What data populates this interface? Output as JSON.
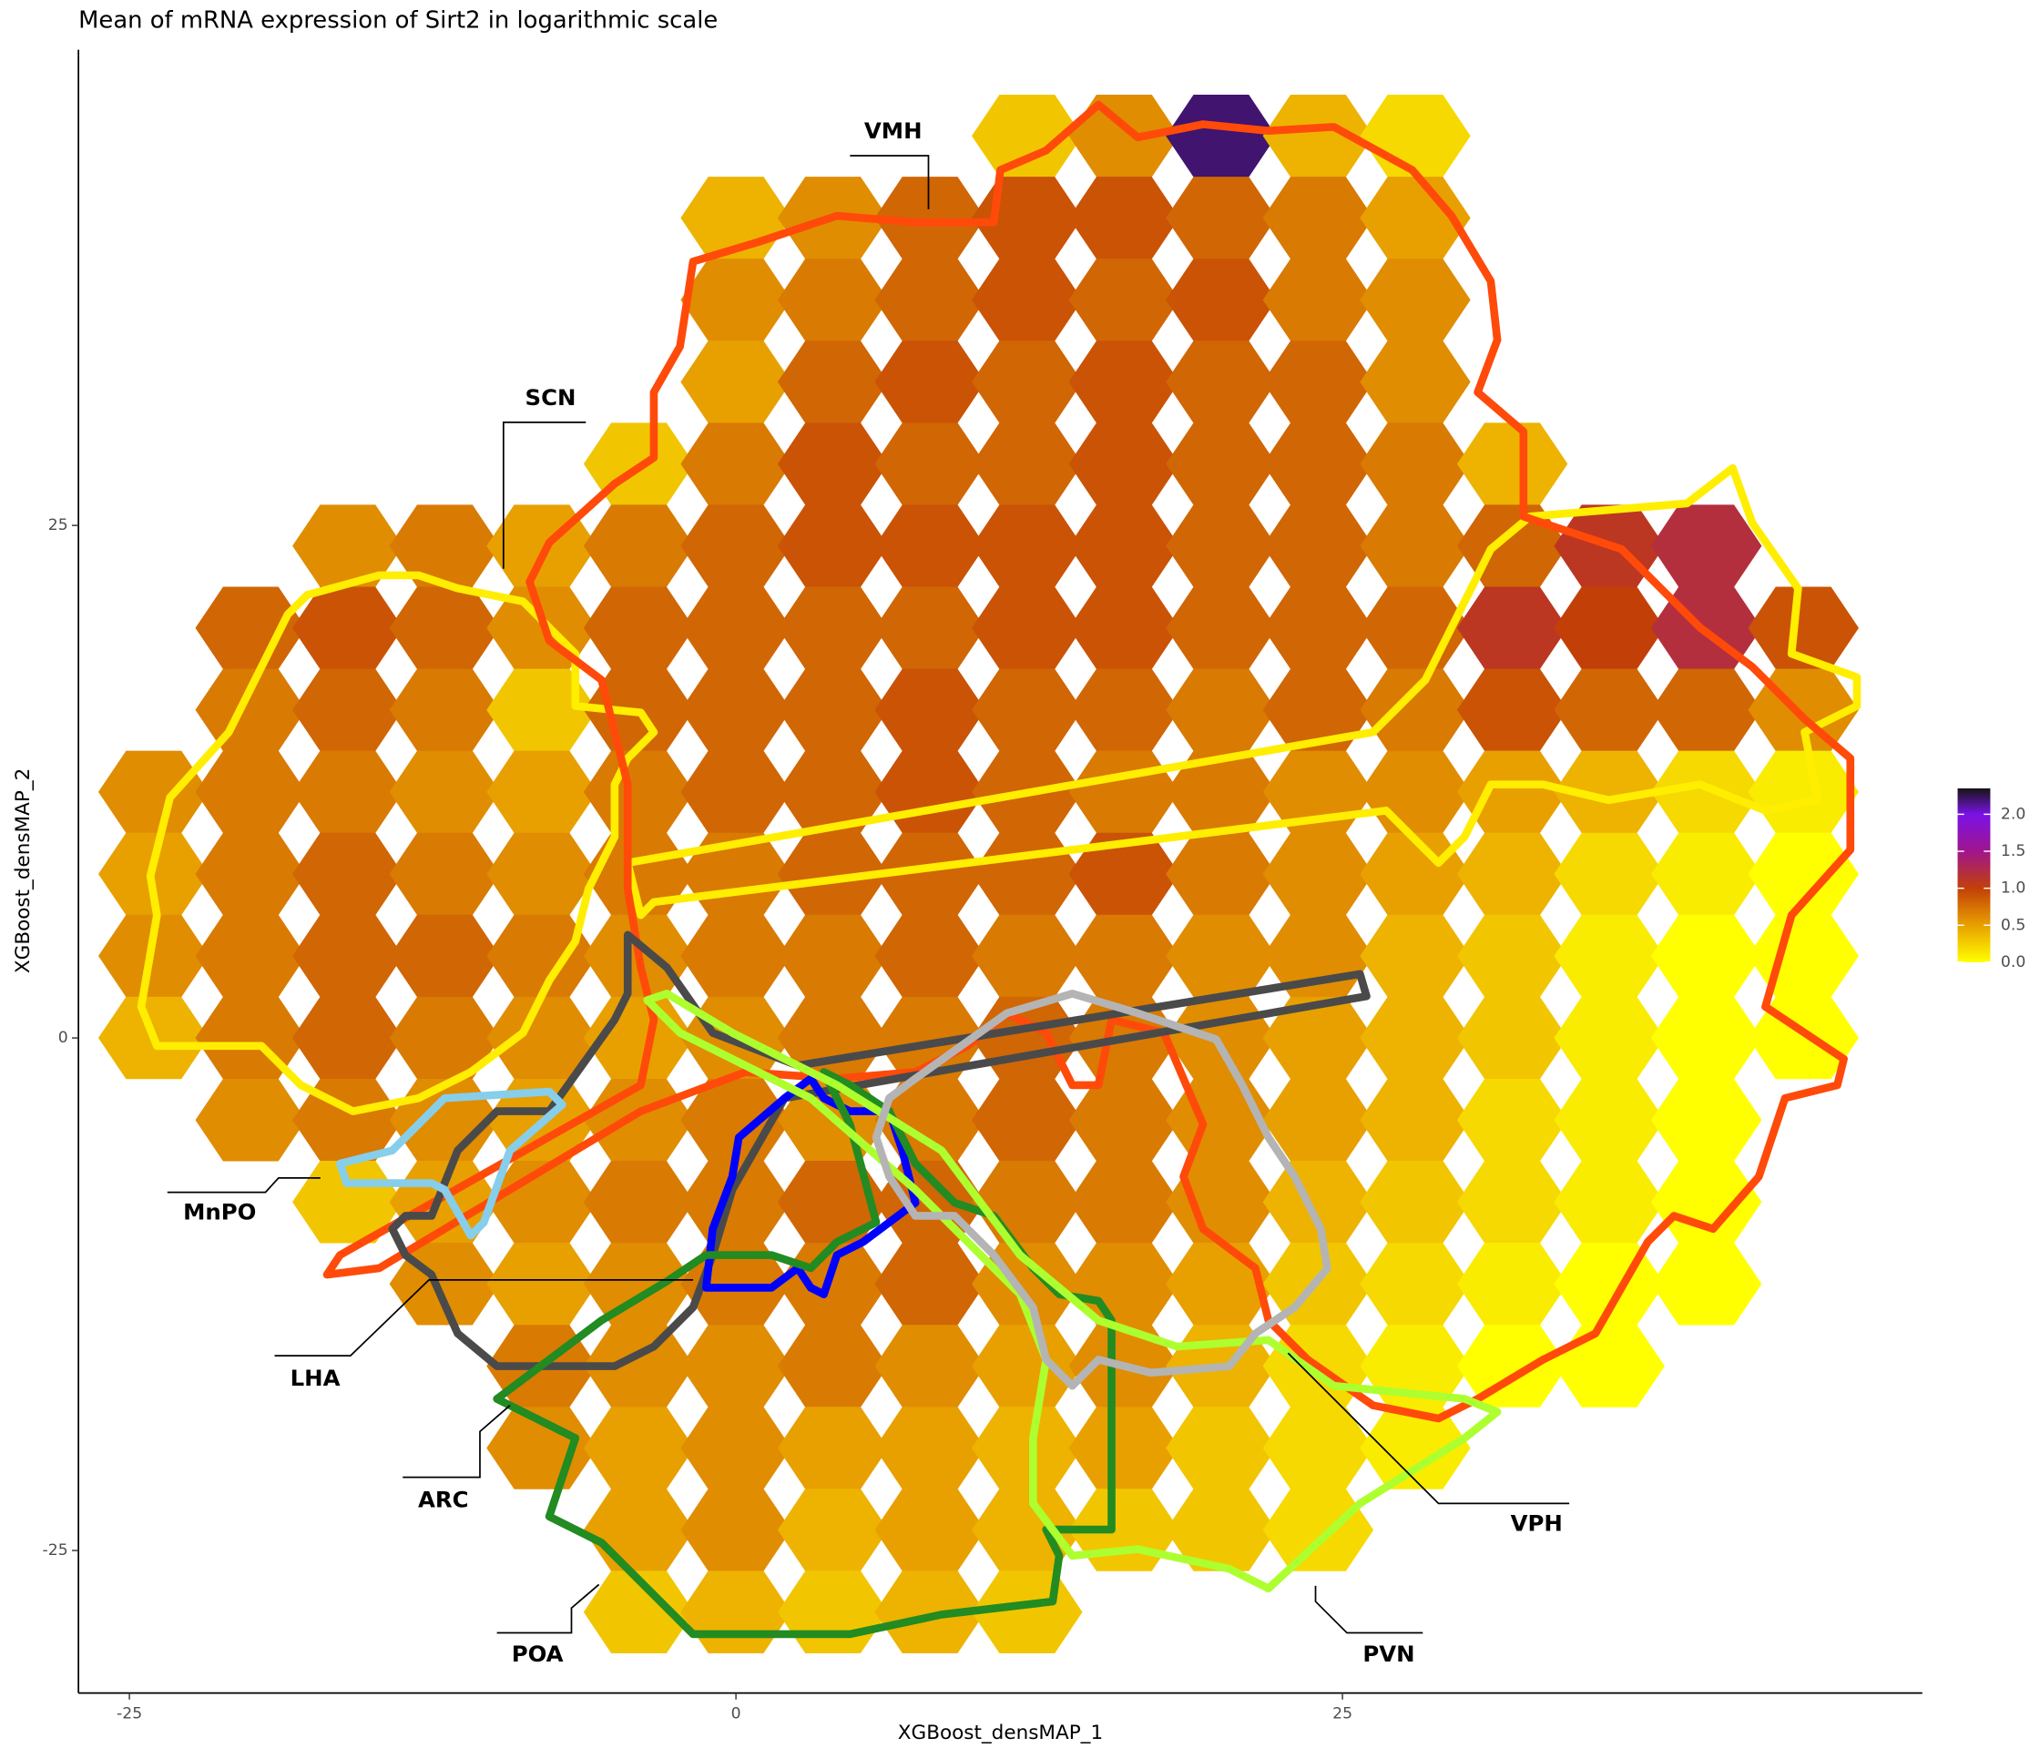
{
  "chart_data": {
    "type": "hexbin",
    "title": "Mean of mRNA expression of Sirt2 in logarithmic scale",
    "xlabel": "XGBoost_densMAP_1",
    "ylabel": "XGBoost_densMAP_2",
    "xlim": [
      -27.1,
      48.9
    ],
    "ylim": [
      -31.95,
      48.2
    ],
    "xticks": [
      -25,
      0,
      25
    ],
    "yticks": [
      -25,
      0,
      25
    ],
    "x": [
      -24,
      -20,
      -16,
      -12,
      -8,
      -4,
      0,
      4,
      8,
      12,
      16,
      20,
      24,
      28,
      32,
      36,
      40,
      44
    ],
    "y": [
      44,
      40,
      36,
      32,
      28,
      24,
      20,
      16,
      12,
      8,
      4,
      0,
      -4,
      -8,
      -12,
      -16,
      -20,
      -24,
      -28
    ],
    "values": [
      [
        null,
        null,
        null,
        null,
        null,
        null,
        null,
        null,
        null,
        0.3,
        0.6,
        2.2,
        0.4,
        0.2,
        null,
        null,
        null,
        null
      ],
      [
        null,
        null,
        null,
        null,
        null,
        null,
        0.4,
        0.6,
        0.8,
        0.9,
        0.9,
        0.8,
        0.7,
        0.5,
        null,
        null,
        null,
        null
      ],
      [
        null,
        null,
        null,
        null,
        null,
        null,
        0.6,
        0.7,
        0.8,
        0.9,
        0.8,
        0.9,
        0.7,
        0.6,
        null,
        null,
        null,
        null
      ],
      [
        null,
        null,
        null,
        null,
        null,
        null,
        0.5,
        0.8,
        0.9,
        0.8,
        0.9,
        0.8,
        0.8,
        0.6,
        null,
        null,
        null,
        null
      ],
      [
        null,
        null,
        null,
        null,
        null,
        0.3,
        0.7,
        0.9,
        0.8,
        0.8,
        0.9,
        0.8,
        0.8,
        0.7,
        0.4,
        null,
        null,
        null
      ],
      [
        null,
        null,
        0.6,
        0.7,
        0.5,
        0.7,
        0.8,
        0.9,
        0.9,
        0.9,
        0.9,
        0.8,
        0.8,
        0.7,
        0.8,
        1.1,
        1.2,
        null
      ],
      [
        null,
        0.8,
        0.9,
        0.8,
        0.6,
        0.8,
        0.8,
        0.8,
        0.8,
        0.9,
        0.9,
        0.8,
        0.8,
        0.8,
        1.1,
        1.0,
        1.2,
        0.9
      ],
      [
        null,
        0.7,
        0.8,
        0.7,
        0.3,
        0.8,
        0.8,
        0.8,
        0.9,
        0.8,
        0.8,
        0.7,
        0.8,
        0.7,
        0.9,
        0.8,
        0.8,
        0.6
      ],
      [
        0.6,
        0.7,
        0.7,
        0.6,
        0.5,
        0.7,
        0.8,
        0.8,
        0.9,
        0.8,
        0.7,
        0.7,
        0.6,
        0.6,
        0.5,
        0.4,
        0.2,
        0.1
      ],
      [
        0.5,
        0.7,
        0.8,
        0.7,
        0.6,
        0.7,
        0.7,
        0.8,
        0.8,
        0.8,
        0.9,
        0.7,
        0.6,
        0.5,
        0.4,
        0.2,
        0.1,
        0.0
      ],
      [
        0.6,
        0.7,
        0.8,
        0.8,
        0.7,
        0.6,
        0.7,
        0.7,
        0.8,
        0.7,
        0.7,
        0.6,
        0.6,
        0.4,
        0.3,
        0.1,
        0.0,
        0.0
      ],
      [
        0.4,
        0.7,
        0.8,
        0.7,
        0.6,
        0.5,
        0.6,
        0.7,
        0.7,
        0.8,
        0.7,
        0.6,
        0.5,
        0.4,
        0.3,
        0.1,
        0.0,
        0.0
      ],
      [
        null,
        0.6,
        0.7,
        0.6,
        0.5,
        0.6,
        0.7,
        0.6,
        0.7,
        0.8,
        0.7,
        0.6,
        0.5,
        0.4,
        0.2,
        0.1,
        0.0,
        null
      ],
      [
        null,
        null,
        0.3,
        0.5,
        0.6,
        0.7,
        0.7,
        0.8,
        0.8,
        0.7,
        0.7,
        0.6,
        0.4,
        0.3,
        0.2,
        0.1,
        0.0,
        null
      ],
      [
        null,
        null,
        null,
        0.6,
        0.5,
        0.6,
        0.7,
        0.7,
        0.8,
        0.6,
        0.6,
        0.5,
        0.3,
        0.2,
        0.1,
        0.0,
        0.0,
        null
      ],
      [
        null,
        null,
        null,
        null,
        0.7,
        0.6,
        0.6,
        0.7,
        0.6,
        0.5,
        0.6,
        0.4,
        0.2,
        0.1,
        0.0,
        0.0,
        null,
        null
      ],
      [
        null,
        null,
        null,
        null,
        0.6,
        0.5,
        0.6,
        0.5,
        0.5,
        0.4,
        0.5,
        0.3,
        0.2,
        0.1,
        null,
        null,
        null,
        null
      ],
      [
        null,
        null,
        null,
        null,
        null,
        0.5,
        0.6,
        0.4,
        0.5,
        0.4,
        0.3,
        0.3,
        0.2,
        null,
        null,
        null,
        null,
        null
      ],
      [
        null,
        null,
        null,
        null,
        null,
        0.3,
        0.4,
        0.3,
        0.4,
        0.3,
        null,
        null,
        null,
        null,
        null,
        null,
        null,
        null
      ]
    ],
    "clim": [
      0,
      2.35
    ],
    "colorscale": [
      {
        "value": 0,
        "color": "#ffff00"
      },
      {
        "value": 0.5,
        "color": "#e8a000"
      },
      {
        "value": 1.0,
        "color": "#c24008"
      },
      {
        "value": 1.5,
        "color": "#a0158c"
      },
      {
        "value": 2.0,
        "color": "#7a12e6"
      },
      {
        "value": 2.35,
        "color": "#151515"
      }
    ],
    "cticks": [
      {
        "value": 0,
        "label": "0.0"
      },
      {
        "value": 0.5,
        "label": "0.5"
      },
      {
        "value": 1.0,
        "label": "1.0"
      },
      {
        "value": 1.5,
        "label": "1.5"
      },
      {
        "value": 2.0,
        "label": "2.0"
      }
    ],
    "regions": [
      "VMH",
      "SCN",
      "MnPO",
      "LHA",
      "ARC",
      "POA",
      "PVN",
      "VPH"
    ]
  }
}
